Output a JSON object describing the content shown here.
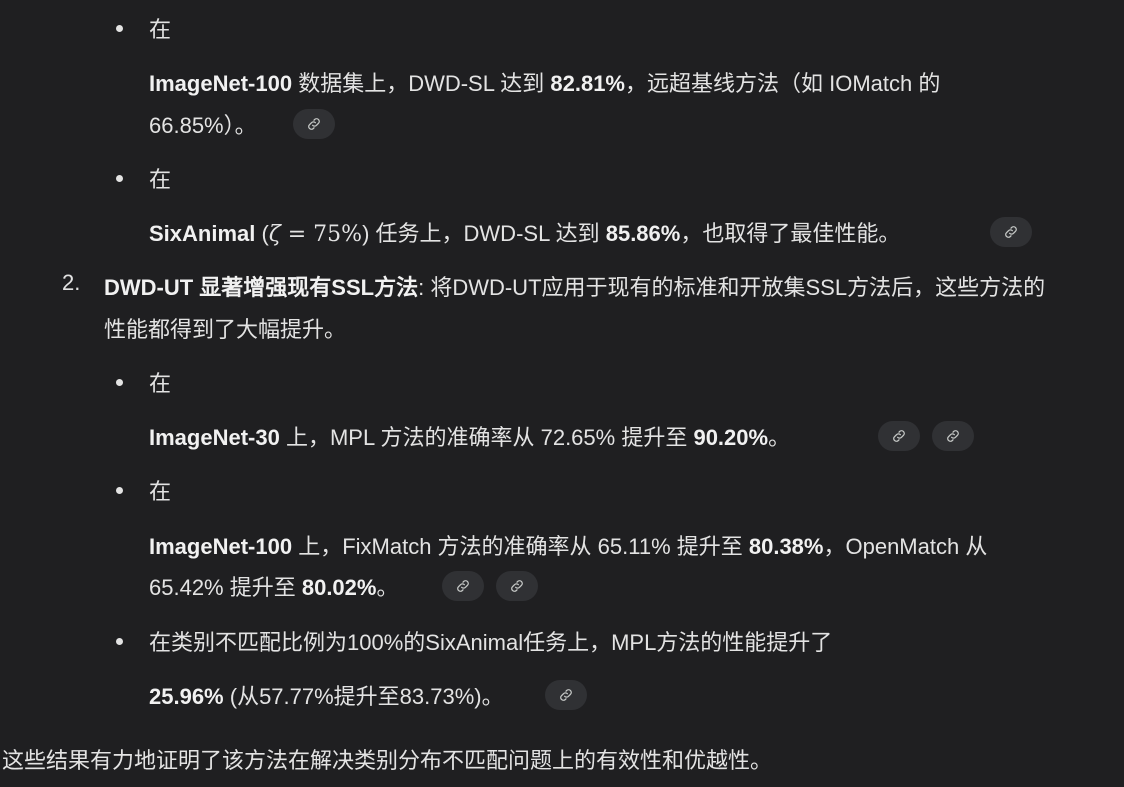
{
  "bullets": [
    {
      "lead": "在",
      "bold1": "ImageNet-100",
      "t1": " 数据集上，DWD-SL 达到 ",
      "bold2": "82.81%",
      "t2": "，远超基线方法（如 IOMatch 的",
      "line2": "66.85%）。"
    },
    {
      "lead": "在",
      "bold1": "SixAnimal",
      "math_open": " (",
      "math_zeta": "ζ",
      "math_eq": " = 75%",
      "math_close": ")",
      "t1": " 任务上，DWD-SL 达到 ",
      "bold2": "85.86%",
      "t2": "，也取得了最佳性能。"
    }
  ],
  "item2": {
    "number": "2.",
    "bold": "DWD-UT 显著增强现有SSL方法",
    "t1": ": 将DWD-UT应用于现有的标准和开放集SSL方法后，这些方法的",
    "line2": "性能都得到了大幅提升。",
    "bullets": [
      {
        "lead": "在",
        "bold1": "ImageNet-30",
        "t1": " 上，MPL 方法的准确率从 72.65% 提升至 ",
        "bold2": "90.20%",
        "t2": "。"
      },
      {
        "lead": "在",
        "bold1": "ImageNet-100",
        "t1": " 上，FixMatch 方法的准确率从 65.11% 提升至 ",
        "bold2": "80.38%",
        "t2": "，OpenMatch 从",
        "l2a": "65.42% 提升至 ",
        "l2bold": "80.02%",
        "l2b": "。"
      },
      {
        "lead": "在类别不匹配比例为100%的SixAnimal任务上，MPL方法的性能提升了",
        "bold1": "25.96%",
        "t1": " (从57.77%提升至83.73%)。"
      }
    ]
  },
  "conclusion": "这些结果有力地证明了该方法在解决类别分布不匹配问题上的有效性和优越性。",
  "icons": {
    "link": "link-icon"
  },
  "colors": {
    "background": "#1f1f21",
    "text": "#e3e3e3",
    "chip": "#303134",
    "chip_icon": "#c4c7c5"
  }
}
